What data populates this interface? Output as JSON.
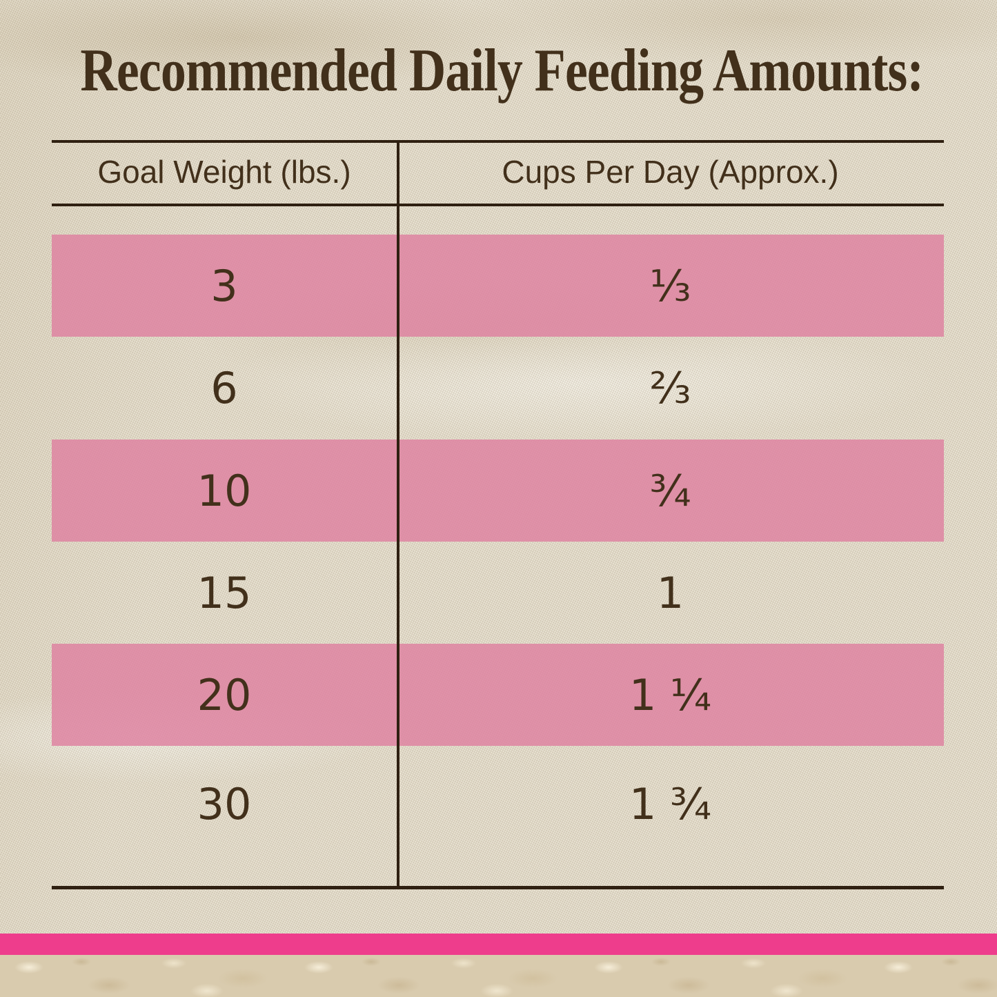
{
  "title": "Recommended Daily Feeding Amounts:",
  "table": {
    "headers": [
      "Goal Weight (lbs.)",
      "Cups Per Day (Approx.)"
    ],
    "rows": [
      {
        "weight": "3",
        "cups": "⅓",
        "highlighted": true
      },
      {
        "weight": "6",
        "cups": "⅔",
        "highlighted": false
      },
      {
        "weight": "10",
        "cups": "¾",
        "highlighted": true
      },
      {
        "weight": "15",
        "cups": "1",
        "highlighted": false
      },
      {
        "weight": "20",
        "cups": "1 ¼",
        "highlighted": true
      },
      {
        "weight": "30",
        "cups": "1 ¾",
        "highlighted": false
      }
    ]
  },
  "chart_data": {
    "type": "table",
    "title": "Recommended Daily Feeding Amounts:",
    "columns": [
      "Goal Weight (lbs.)",
      "Cups Per Day (Approx.)"
    ],
    "rows": [
      [
        "3",
        "⅓"
      ],
      [
        "6",
        "⅔"
      ],
      [
        "10",
        "¾"
      ],
      [
        "15",
        "1"
      ],
      [
        "20",
        "1 ¼"
      ],
      [
        "30",
        "1 ¾"
      ]
    ],
    "goal_weight_lbs": [
      3,
      6,
      10,
      15,
      20,
      30
    ],
    "cups_per_day_numeric": [
      0.33,
      0.67,
      0.75,
      1,
      1.25,
      1.75
    ],
    "highlighted_rows": [
      0,
      2,
      4
    ],
    "legend_position": "none",
    "grid": "partial-rules"
  },
  "colors": {
    "highlight_pink": "#e18ca8",
    "accent_pink_bar": "#ee3d8c",
    "text_brown": "#42301b",
    "line_brown": "#2f2011",
    "fabric_cream": "#eae3d2",
    "marble_beige": "#d9cbae"
  }
}
